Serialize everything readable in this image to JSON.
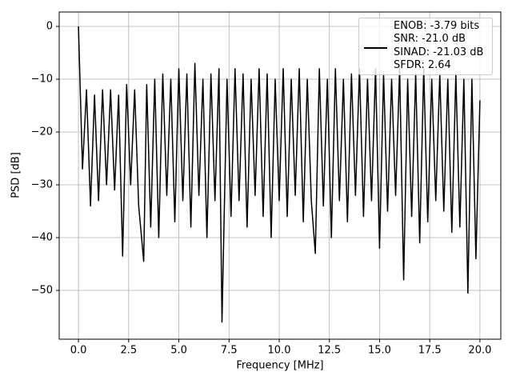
{
  "chart_data": {
    "type": "line",
    "xlabel": "Frequency [MHz]",
    "ylabel": "PSD [dB]",
    "x": [
      0,
      0.2,
      0.4,
      0.6,
      0.8,
      1.0,
      1.2,
      1.4,
      1.6,
      1.8,
      2.0,
      2.2,
      2.4,
      2.6,
      2.8,
      3.0,
      3.25,
      3.4,
      3.6,
      3.8,
      4.0,
      4.2,
      4.4,
      4.6,
      4.8,
      5.0,
      5.2,
      5.4,
      5.6,
      5.8,
      6.0,
      6.2,
      6.4,
      6.6,
      6.8,
      7.0,
      7.15,
      7.4,
      7.6,
      7.8,
      8.0,
      8.2,
      8.4,
      8.6,
      8.8,
      9.0,
      9.2,
      9.4,
      9.6,
      9.8,
      10.0,
      10.2,
      10.4,
      10.6,
      10.8,
      11.0,
      11.2,
      11.4,
      11.6,
      11.8,
      12.0,
      12.2,
      12.4,
      12.6,
      12.8,
      13.0,
      13.2,
      13.4,
      13.6,
      13.8,
      14.0,
      14.2,
      14.4,
      14.6,
      14.8,
      15.0,
      15.2,
      15.4,
      15.6,
      15.8,
      16.0,
      16.2,
      16.4,
      16.6,
      16.8,
      17.0,
      17.2,
      17.4,
      17.6,
      17.8,
      18.0,
      18.2,
      18.4,
      18.6,
      18.8,
      19.0,
      19.2,
      19.4,
      19.6,
      19.8,
      20.0
    ],
    "series": [
      {
        "name": "ENOB: -3.79 bits\nSNR: -21.0 dB\nSINAD: -21.03 dB\nSFDR: 2.64",
        "color": "#000000",
        "values": [
          0,
          -27,
          -12,
          -34,
          -13,
          -33,
          -12,
          -30,
          -12,
          -31,
          -13,
          -43.5,
          -11,
          -30,
          -12,
          -34,
          -44.5,
          -11,
          -38,
          -10,
          -40,
          -9,
          -32,
          -10,
          -37,
          -8,
          -33,
          -9,
          -38,
          -7,
          -32,
          -10,
          -40,
          -9,
          -33,
          -8,
          -56,
          -10,
          -36,
          -8,
          -33,
          -9,
          -38,
          -10,
          -32,
          -8,
          -36,
          -9,
          -40,
          -10,
          -33,
          -8,
          -36,
          -10,
          -32,
          -8,
          -37,
          -10,
          -33,
          -43,
          -8,
          -34,
          -10,
          -40,
          -8,
          -33,
          -10,
          -37,
          -9,
          -32,
          -8,
          -36,
          -10,
          -33,
          -8,
          -42,
          -9,
          -35,
          -10,
          -32,
          -8,
          -48,
          -10,
          -36,
          -9,
          -41,
          -8,
          -37,
          -10,
          -33,
          -9,
          -35,
          -10,
          -39,
          -9,
          -38,
          -10,
          -50.5,
          -10,
          -44,
          -14
        ]
      }
    ],
    "xlim": [
      -0.96,
      21.04
    ],
    "ylim": [
      -59.24,
      2.73
    ],
    "xticks": [
      {
        "value": 0,
        "label": "0.0"
      },
      2.5,
      {
        "value": 5,
        "label": "5.0"
      },
      7.5,
      {
        "value": 10,
        "label": "10.0"
      },
      12.5,
      {
        "value": 15,
        "label": "15.0"
      },
      17.5,
      {
        "value": 20,
        "label": "20.0"
      }
    ],
    "yticks": [
      {
        "value": -50,
        "label": "−50"
      },
      {
        "value": -40,
        "label": "−40"
      },
      {
        "value": -30,
        "label": "−30"
      },
      {
        "value": -20,
        "label": "−20"
      },
      {
        "value": -10,
        "label": "−10"
      },
      0
    ],
    "grid": true,
    "legend": "upper right"
  }
}
